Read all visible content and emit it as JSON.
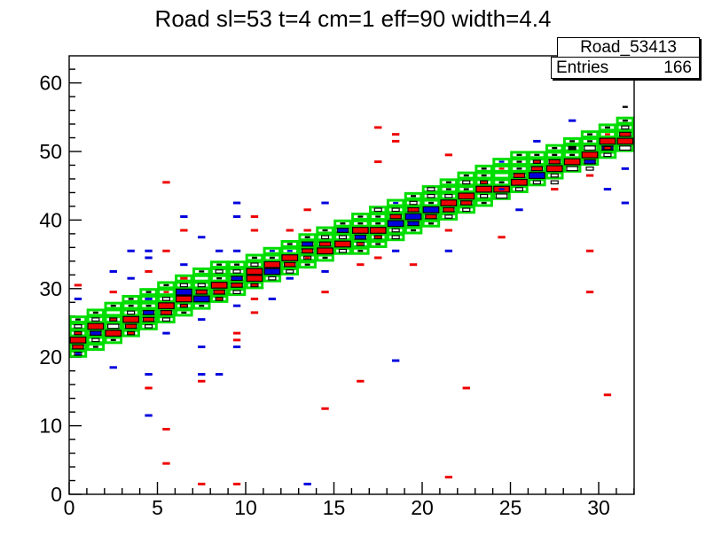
{
  "title": "Road sl=53 t=4 cm=1 eff=90 width=4.4",
  "stats": {
    "name": "Road_53413",
    "entries_label": "Entries",
    "entries_value": "166"
  },
  "chart_data": {
    "type": "heatmap",
    "title": "Road sl=53 t=4 cm=1 eff=90 width=4.4",
    "xlabel": "",
    "ylabel": "",
    "x_range": [
      0,
      32
    ],
    "y_range": [
      0,
      64
    ],
    "x_major_ticks": [
      0,
      5,
      10,
      15,
      20,
      25,
      30
    ],
    "y_major_ticks": [
      0,
      10,
      20,
      30,
      40,
      50,
      60
    ],
    "x_minor_step": 1,
    "y_minor_step": 2,
    "grid": false,
    "legend": "stats-box top-right",
    "colors": {
      "road_green": "#00dd00",
      "red": "#ee0000",
      "blue": "#0000dd",
      "black": "#000000",
      "white": "#ffffff",
      "frame": "#000000"
    },
    "road_columns": [
      [
        0,
        20,
        6
      ],
      [
        1,
        21,
        6
      ],
      [
        2,
        22,
        6
      ],
      [
        3,
        23,
        6
      ],
      [
        4,
        24,
        6
      ],
      [
        5,
        25,
        6
      ],
      [
        6,
        26,
        6
      ],
      [
        7,
        27,
        6
      ],
      [
        8,
        28,
        6
      ],
      [
        9,
        29,
        5
      ],
      [
        10,
        30,
        5
      ],
      [
        11,
        31,
        5
      ],
      [
        12,
        32,
        5
      ],
      [
        13,
        33,
        5
      ],
      [
        14,
        34,
        5
      ],
      [
        15,
        35,
        5
      ],
      [
        16,
        35,
        6
      ],
      [
        17,
        36,
        6
      ],
      [
        18,
        37,
        6
      ],
      [
        19,
        38,
        6
      ],
      [
        20,
        39,
        6
      ],
      [
        21,
        40,
        6
      ],
      [
        22,
        41,
        6
      ],
      [
        23,
        42,
        6
      ],
      [
        24,
        43,
        6
      ],
      [
        25,
        44,
        6
      ],
      [
        26,
        45,
        5
      ],
      [
        27,
        46,
        5
      ],
      [
        28,
        47,
        5
      ],
      [
        29,
        48,
        5
      ],
      [
        30,
        49,
        5
      ],
      [
        31,
        50,
        5
      ]
    ],
    "size_classes": {
      "L": [
        0.88,
        0.85
      ],
      "M": [
        0.62,
        0.6
      ],
      "S": [
        0.4,
        0.45
      ],
      "T": [
        0.3,
        0.3
      ],
      "D": [
        0.42,
        0.38
      ]
    },
    "box_markers": [
      [
        0,
        20,
        "S",
        "w"
      ],
      [
        0,
        20,
        "T",
        "b"
      ],
      [
        0,
        21,
        "M",
        "r"
      ],
      [
        0,
        22,
        "L",
        "r"
      ],
      [
        0,
        23,
        "S",
        "r"
      ],
      [
        0,
        24,
        "S",
        "w"
      ],
      [
        0,
        25,
        "T",
        "k"
      ],
      [
        1,
        21,
        "T",
        "k"
      ],
      [
        1,
        22,
        "S",
        "w"
      ],
      [
        1,
        23,
        "M",
        "b"
      ],
      [
        1,
        24,
        "L",
        "r"
      ],
      [
        1,
        25,
        "S",
        "w"
      ],
      [
        1,
        26,
        "T",
        "k"
      ],
      [
        2,
        22,
        "T",
        "k"
      ],
      [
        2,
        23,
        "L",
        "r"
      ],
      [
        2,
        24,
        "M",
        "w"
      ],
      [
        2,
        25,
        "S",
        "r"
      ],
      [
        2,
        26,
        "T",
        "w"
      ],
      [
        2,
        27,
        "T",
        "k"
      ],
      [
        3,
        23,
        "S",
        "r"
      ],
      [
        3,
        24,
        "M",
        "r"
      ],
      [
        3,
        25,
        "L",
        "r"
      ],
      [
        3,
        26,
        "S",
        "w"
      ],
      [
        3,
        27,
        "T",
        "k"
      ],
      [
        3,
        28,
        "T",
        "k"
      ],
      [
        4,
        24,
        "S",
        "w"
      ],
      [
        4,
        25,
        "M",
        "r"
      ],
      [
        4,
        26,
        "M",
        "b"
      ],
      [
        4,
        27,
        "T",
        "k"
      ],
      [
        4,
        28,
        "T",
        "w"
      ],
      [
        4,
        29,
        "T",
        "k"
      ],
      [
        5,
        25,
        "S",
        "w"
      ],
      [
        5,
        26,
        "M",
        "r"
      ],
      [
        5,
        27,
        "L",
        "r"
      ],
      [
        5,
        28,
        "S",
        "w"
      ],
      [
        5,
        29,
        "T",
        "r"
      ],
      [
        5,
        30,
        "T",
        "k"
      ],
      [
        6,
        26,
        "T",
        "k"
      ],
      [
        6,
        27,
        "S",
        "r"
      ],
      [
        6,
        28,
        "L",
        "r"
      ],
      [
        6,
        29,
        "L",
        "b"
      ],
      [
        6,
        30,
        "S",
        "w"
      ],
      [
        6,
        31,
        "T",
        "k"
      ],
      [
        7,
        27,
        "T",
        "k"
      ],
      [
        7,
        28,
        "L",
        "b"
      ],
      [
        7,
        29,
        "M",
        "r"
      ],
      [
        7,
        30,
        "S",
        "w"
      ],
      [
        7,
        31,
        "T",
        "w"
      ],
      [
        7,
        32,
        "T",
        "k"
      ],
      [
        8,
        28,
        "S",
        "r"
      ],
      [
        8,
        29,
        "M",
        "r"
      ],
      [
        8,
        30,
        "L",
        "r"
      ],
      [
        8,
        31,
        "T",
        "k"
      ],
      [
        8,
        32,
        "S",
        "w"
      ],
      [
        8,
        33,
        "T",
        "k"
      ],
      [
        9,
        29,
        "S",
        "w"
      ],
      [
        9,
        30,
        "M",
        "r"
      ],
      [
        9,
        31,
        "M",
        "b"
      ],
      [
        9,
        32,
        "S",
        "w"
      ],
      [
        9,
        33,
        "T",
        "k"
      ],
      [
        10,
        30,
        "S",
        "r"
      ],
      [
        10,
        31,
        "L",
        "r"
      ],
      [
        10,
        32,
        "L",
        "r"
      ],
      [
        10,
        33,
        "S",
        "w"
      ],
      [
        10,
        34,
        "T",
        "k"
      ],
      [
        11,
        31,
        "S",
        "w"
      ],
      [
        11,
        32,
        "L",
        "b"
      ],
      [
        11,
        33,
        "L",
        "r"
      ],
      [
        11,
        34,
        "T",
        "k"
      ],
      [
        11,
        35,
        "T",
        "b"
      ],
      [
        12,
        32,
        "S",
        "w"
      ],
      [
        12,
        33,
        "M",
        "r"
      ],
      [
        12,
        34,
        "L",
        "r"
      ],
      [
        12,
        35,
        "T",
        "b"
      ],
      [
        12,
        36,
        "T",
        "k"
      ],
      [
        13,
        33,
        "T",
        "k"
      ],
      [
        13,
        34,
        "S",
        "w"
      ],
      [
        13,
        34,
        "T",
        "r"
      ],
      [
        13,
        35,
        "M",
        "r"
      ],
      [
        13,
        36,
        "M",
        "b"
      ],
      [
        13,
        37,
        "T",
        "k"
      ],
      [
        14,
        34,
        "T",
        "k"
      ],
      [
        14,
        35,
        "L",
        "r"
      ],
      [
        14,
        36,
        "M",
        "r"
      ],
      [
        14,
        37,
        "S",
        "w"
      ],
      [
        14,
        38,
        "T",
        "k"
      ],
      [
        15,
        35,
        "S",
        "w"
      ],
      [
        15,
        36,
        "L",
        "r"
      ],
      [
        15,
        37,
        "S",
        "w"
      ],
      [
        15,
        38,
        "M",
        "b"
      ],
      [
        15,
        39,
        "T",
        "k"
      ],
      [
        16,
        35,
        "T",
        "k"
      ],
      [
        16,
        36,
        "S",
        "w"
      ],
      [
        16,
        36,
        "T",
        "r"
      ],
      [
        16,
        37,
        "M",
        "b"
      ],
      [
        16,
        38,
        "L",
        "r"
      ],
      [
        16,
        39,
        "T",
        "k"
      ],
      [
        16,
        40,
        "T",
        "k"
      ],
      [
        17,
        36,
        "T",
        "k"
      ],
      [
        17,
        37,
        "S",
        "r"
      ],
      [
        17,
        38,
        "L",
        "r"
      ],
      [
        17,
        39,
        "T",
        "k"
      ],
      [
        17,
        40,
        "T",
        "k"
      ],
      [
        17,
        41,
        "S",
        "w"
      ],
      [
        18,
        37,
        "S",
        "w"
      ],
      [
        18,
        38,
        "S",
        "w"
      ],
      [
        18,
        39,
        "L",
        "b"
      ],
      [
        18,
        40,
        "M",
        "r"
      ],
      [
        18,
        41,
        "S",
        "w"
      ],
      [
        18,
        42,
        "T",
        "b"
      ],
      [
        19,
        38,
        "T",
        "k"
      ],
      [
        19,
        39,
        "M",
        "b"
      ],
      [
        19,
        40,
        "L",
        "b"
      ],
      [
        19,
        41,
        "M",
        "r"
      ],
      [
        19,
        42,
        "S",
        "w"
      ],
      [
        19,
        43,
        "T",
        "k"
      ],
      [
        20,
        39,
        "T",
        "k"
      ],
      [
        20,
        40,
        "M",
        "r"
      ],
      [
        20,
        41,
        "L",
        "b"
      ],
      [
        20,
        42,
        "T",
        "k"
      ],
      [
        20,
        43,
        "S",
        "w"
      ],
      [
        20,
        44,
        "S",
        "w"
      ],
      [
        21,
        40,
        "S",
        "w"
      ],
      [
        21,
        41,
        "M",
        "r"
      ],
      [
        21,
        42,
        "L",
        "r"
      ],
      [
        21,
        43,
        "S",
        "w"
      ],
      [
        21,
        44,
        "T",
        "k"
      ],
      [
        21,
        45,
        "T",
        "k"
      ],
      [
        22,
        41,
        "S",
        "w"
      ],
      [
        22,
        42,
        "M",
        "r"
      ],
      [
        22,
        43,
        "L",
        "r"
      ],
      [
        22,
        44,
        "T",
        "k"
      ],
      [
        22,
        45,
        "S",
        "w"
      ],
      [
        22,
        46,
        "T",
        "k"
      ],
      [
        23,
        42,
        "T",
        "k"
      ],
      [
        23,
        43,
        "S",
        "w"
      ],
      [
        23,
        44,
        "L",
        "r"
      ],
      [
        23,
        45,
        "S",
        "r"
      ],
      [
        23,
        46,
        "T",
        "k"
      ],
      [
        23,
        47,
        "T",
        "k"
      ],
      [
        24,
        43,
        "M",
        "w"
      ],
      [
        24,
        44,
        "L",
        "r"
      ],
      [
        24,
        44,
        "T",
        "b"
      ],
      [
        24,
        45,
        "T",
        "k"
      ],
      [
        24,
        47,
        "T",
        "r"
      ],
      [
        24,
        48,
        "T",
        "b"
      ],
      [
        25,
        44,
        "S",
        "w"
      ],
      [
        25,
        45,
        "L",
        "r"
      ],
      [
        25,
        46,
        "M",
        "r"
      ],
      [
        25,
        47,
        "T",
        "k"
      ],
      [
        25,
        48,
        "T",
        "k"
      ],
      [
        25,
        49,
        "T",
        "k"
      ],
      [
        26,
        45,
        "S",
        "w"
      ],
      [
        26,
        46,
        "L",
        "b"
      ],
      [
        26,
        47,
        "M",
        "r"
      ],
      [
        26,
        48,
        "S",
        "r"
      ],
      [
        26,
        49,
        "T",
        "k"
      ],
      [
        27,
        45,
        "S",
        "w"
      ],
      [
        27,
        46,
        "S",
        "w"
      ],
      [
        27,
        47,
        "L",
        "r"
      ],
      [
        27,
        48,
        "M",
        "r"
      ],
      [
        27,
        49,
        "T",
        "k"
      ],
      [
        27,
        50,
        "T",
        "k"
      ],
      [
        28,
        47,
        "M",
        "w"
      ],
      [
        28,
        48,
        "L",
        "r"
      ],
      [
        28,
        49,
        "T",
        "k"
      ],
      [
        28,
        50,
        "S",
        "k"
      ],
      [
        28,
        51,
        "T",
        "k"
      ],
      [
        29,
        47,
        "S",
        "w"
      ],
      [
        29,
        48,
        "M",
        "b"
      ],
      [
        29,
        49,
        "L",
        "r"
      ],
      [
        29,
        50,
        "M",
        "w"
      ],
      [
        29,
        51,
        "T",
        "k"
      ],
      [
        29,
        52,
        "T",
        "k"
      ],
      [
        30,
        49,
        "S",
        "w"
      ],
      [
        30,
        50,
        "M",
        "b"
      ],
      [
        30,
        50,
        "S",
        "r"
      ],
      [
        30,
        51,
        "L",
        "r"
      ],
      [
        30,
        52,
        "T",
        "r"
      ],
      [
        30,
        53,
        "T",
        "k"
      ],
      [
        31,
        50,
        "M",
        "w"
      ],
      [
        31,
        51,
        "L",
        "r"
      ],
      [
        31,
        52,
        "M",
        "r"
      ],
      [
        31,
        53,
        "S",
        "w"
      ],
      [
        31,
        54,
        "T",
        "k"
      ]
    ],
    "scatter_red": [
      [
        5,
        45
      ],
      [
        13,
        41
      ],
      [
        10,
        40
      ],
      [
        6,
        38
      ],
      [
        10,
        38
      ],
      [
        12,
        38
      ],
      [
        13,
        38
      ],
      [
        5,
        35
      ],
      [
        17,
        53
      ],
      [
        18,
        52
      ],
      [
        18,
        51
      ],
      [
        17,
        48
      ],
      [
        21,
        49
      ],
      [
        29,
        46
      ],
      [
        27,
        44
      ],
      [
        21,
        38
      ],
      [
        24,
        37
      ],
      [
        29,
        35
      ],
      [
        17,
        34
      ],
      [
        19,
        33
      ],
      [
        16,
        33
      ],
      [
        4,
        32
      ],
      [
        0,
        30
      ],
      [
        6,
        31
      ],
      [
        2,
        29
      ],
      [
        10,
        28
      ],
      [
        14,
        29
      ],
      [
        29,
        29
      ],
      [
        10,
        26
      ],
      [
        9,
        23
      ],
      [
        9,
        22
      ],
      [
        7,
        16
      ],
      [
        4,
        15
      ],
      [
        16,
        16
      ],
      [
        22,
        15
      ],
      [
        30,
        14
      ],
      [
        14,
        12
      ],
      [
        5,
        9
      ],
      [
        5,
        4
      ],
      [
        7,
        1
      ],
      [
        9,
        1
      ],
      [
        21,
        2
      ]
    ],
    "scatter_blue": [
      [
        9,
        42
      ],
      [
        14,
        42
      ],
      [
        6,
        40
      ],
      [
        9,
        40
      ],
      [
        7,
        37
      ],
      [
        3,
        35
      ],
      [
        4,
        35
      ],
      [
        8,
        35
      ],
      [
        9,
        35
      ],
      [
        21,
        35
      ],
      [
        18,
        35
      ],
      [
        4,
        34
      ],
      [
        6,
        33
      ],
      [
        28,
        54
      ],
      [
        26,
        51
      ],
      [
        31,
        47
      ],
      [
        30,
        44
      ],
      [
        31,
        42
      ],
      [
        25,
        41
      ],
      [
        2,
        32
      ],
      [
        3,
        31
      ],
      [
        14,
        32
      ],
      [
        4,
        28
      ],
      [
        0,
        28
      ],
      [
        11,
        28
      ],
      [
        9,
        27
      ],
      [
        7,
        25
      ],
      [
        12,
        31
      ],
      [
        5,
        23
      ],
      [
        9,
        21
      ],
      [
        7,
        21
      ],
      [
        2,
        18
      ],
      [
        18,
        19
      ],
      [
        4,
        17
      ],
      [
        7,
        17
      ],
      [
        8,
        17
      ],
      [
        4,
        11
      ],
      [
        13,
        1
      ]
    ],
    "scatter_black": [
      [
        31,
        56
      ]
    ]
  }
}
